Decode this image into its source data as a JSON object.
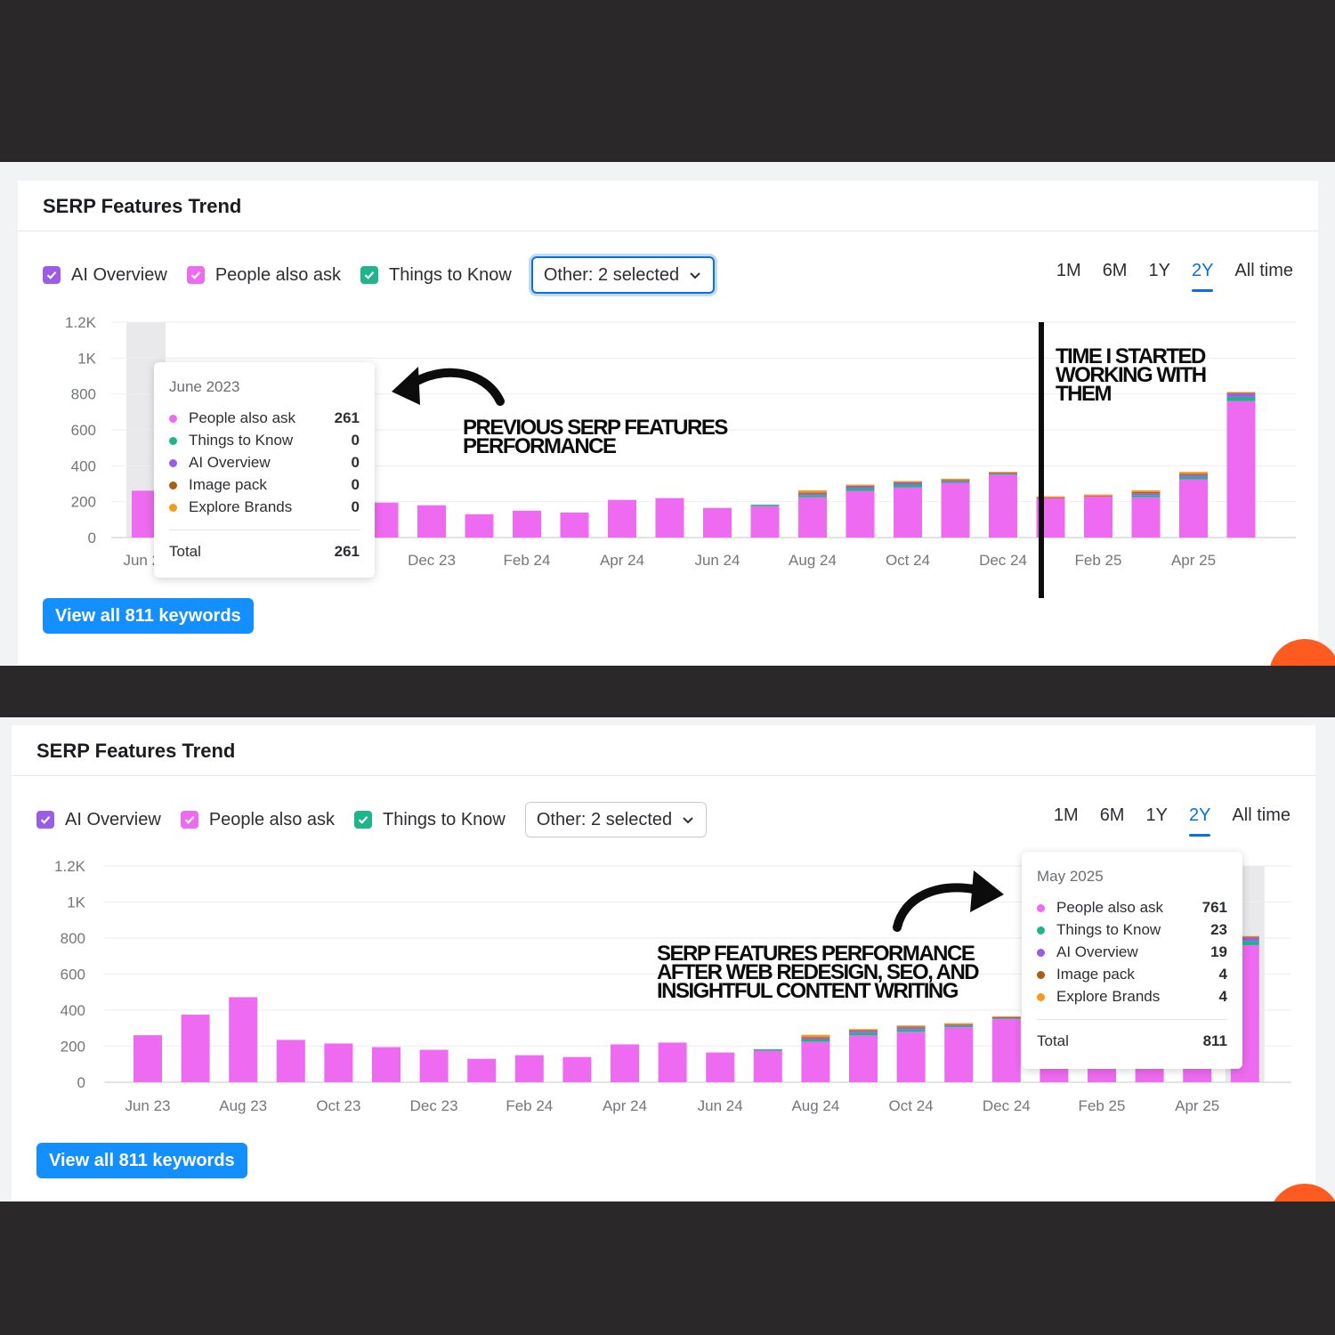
{
  "colors": {
    "people_also_ask": "#ee6af0",
    "things_to_know": "#1eb58a",
    "ai_overview": "#9b5ce8",
    "image_pack": "#b05b14",
    "explore_brands": "#f49b1d",
    "accent": "#148fff"
  },
  "panels": [
    {
      "title": "SERP Features Trend",
      "legend": {
        "ai_overview": "AI Overview",
        "people_also_ask": "People also ask",
        "things_to_know": "Things to Know"
      },
      "other_dropdown": "Other: 2 selected",
      "periods": [
        "1M",
        "6M",
        "1Y",
        "2Y",
        "All time"
      ],
      "active_period": "2Y",
      "view_all_button": "View all 811 keywords",
      "tooltip": {
        "date": "June 2023",
        "rows": [
          {
            "label": "People also ask",
            "value": "261"
          },
          {
            "label": "Things to Know",
            "value": "0"
          },
          {
            "label": "AI Overview",
            "value": "0"
          },
          {
            "label": "Image pack",
            "value": "0"
          },
          {
            "label": "Explore Brands",
            "value": "0"
          }
        ],
        "total_label": "Total",
        "total_value": "261"
      },
      "annotations": {
        "previous": [
          "PREVIOUS SERP FEATURES",
          "PERFORMANCE"
        ],
        "started": [
          "TIME I STARTED",
          "WORKING WITH",
          "THEM"
        ]
      }
    },
    {
      "title": "SERP Features Trend",
      "legend": {
        "ai_overview": "AI Overview",
        "people_also_ask": "People also ask",
        "things_to_know": "Things to Know"
      },
      "other_dropdown": "Other: 2 selected",
      "periods": [
        "1M",
        "6M",
        "1Y",
        "2Y",
        "All time"
      ],
      "active_period": "2Y",
      "view_all_button": "View all 811 keywords",
      "tooltip": {
        "date": "May 2025",
        "rows": [
          {
            "label": "People also ask",
            "value": "761"
          },
          {
            "label": "Things to Know",
            "value": "23"
          },
          {
            "label": "AI Overview",
            "value": "19"
          },
          {
            "label": "Image pack",
            "value": "4"
          },
          {
            "label": "Explore Brands",
            "value": "4"
          }
        ],
        "total_label": "Total",
        "total_value": "811"
      },
      "annotations": {
        "after": [
          "SERP FEATURES PERFORMANCE",
          "AFTER WEB REDESIGN, SEO, AND",
          "INSIGHTFUL CONTENT WRITING"
        ]
      }
    }
  ],
  "chart_data": {
    "type": "bar",
    "stacked": true,
    "x": [
      "Jun 23",
      "Jul 23",
      "Aug 23",
      "Sep 23",
      "Oct 23",
      "Nov 23",
      "Dec 23",
      "Jan 24",
      "Feb 24",
      "Mar 24",
      "Apr 24",
      "May 24",
      "Jun 24",
      "Jul 24",
      "Aug 24",
      "Sep 24",
      "Oct 24",
      "Nov 24",
      "Dec 24",
      "Jan 25",
      "Feb 25",
      "Mar 25",
      "Apr 25",
      "May 25"
    ],
    "x_tick_labels": [
      "Jun 23",
      "Aug 23",
      "Oct 23",
      "Dec 23",
      "Feb 24",
      "Apr 24",
      "Jun 24",
      "Aug 24",
      "Oct 24",
      "Dec 24",
      "Feb 25",
      "Apr 25"
    ],
    "y_tick_labels": [
      "0",
      "200",
      "400",
      "600",
      "800",
      "1K",
      "1.2K"
    ],
    "ylim": [
      0,
      1200
    ],
    "series": [
      {
        "name": "People also ask",
        "key": "people_also_ask",
        "values": [
          261,
          375,
          472,
          235,
          215,
          195,
          180,
          130,
          150,
          140,
          210,
          220,
          165,
          175,
          225,
          260,
          280,
          305,
          350,
          220,
          230,
          225,
          325,
          761
        ]
      },
      {
        "name": "Things to Know",
        "key": "things_to_know",
        "values": [
          0,
          0,
          0,
          0,
          0,
          0,
          0,
          0,
          0,
          0,
          0,
          0,
          0,
          8,
          12,
          15,
          15,
          8,
          5,
          0,
          0,
          12,
          15,
          23
        ]
      },
      {
        "name": "AI Overview",
        "key": "ai_overview",
        "values": [
          0,
          0,
          0,
          0,
          0,
          0,
          0,
          0,
          0,
          0,
          0,
          0,
          0,
          0,
          8,
          10,
          10,
          5,
          3,
          0,
          0,
          10,
          10,
          19
        ]
      },
      {
        "name": "Image pack",
        "key": "image_pack",
        "values": [
          0,
          0,
          0,
          0,
          0,
          0,
          0,
          0,
          0,
          0,
          0,
          0,
          0,
          0,
          6,
          4,
          4,
          4,
          4,
          4,
          4,
          6,
          6,
          4
        ]
      },
      {
        "name": "Explore Brands",
        "key": "explore_brands",
        "values": [
          0,
          0,
          0,
          0,
          0,
          0,
          0,
          0,
          0,
          0,
          0,
          0,
          0,
          0,
          12,
          6,
          6,
          6,
          4,
          6,
          6,
          10,
          10,
          4
        ]
      }
    ],
    "grid": true
  }
}
